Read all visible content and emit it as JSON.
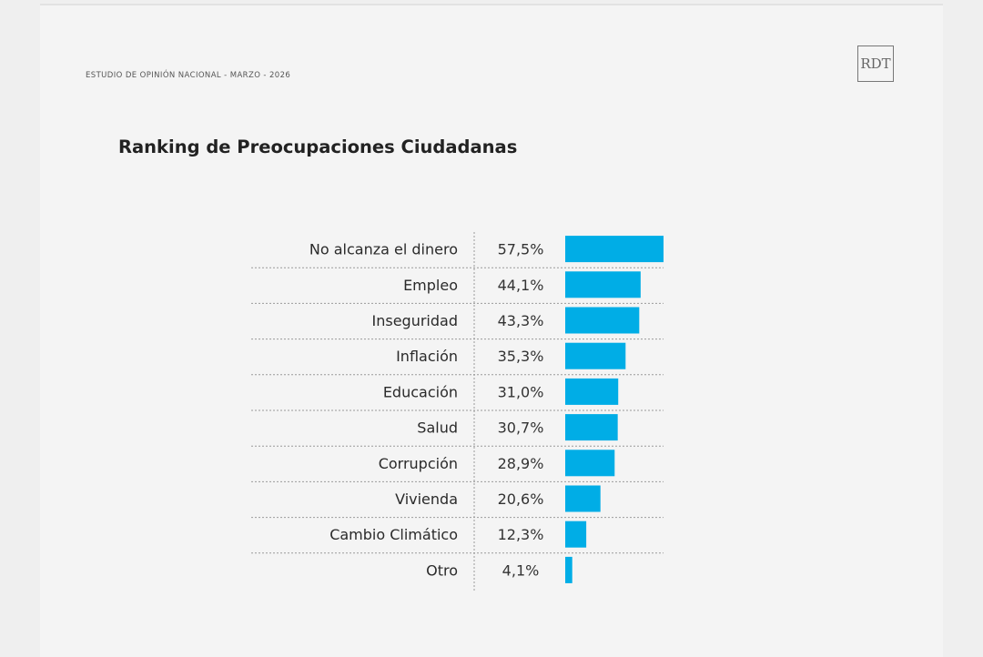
{
  "header": {
    "study_label": "ESTUDIO DE OPINIÓN NACIONAL - MARZO - 2026",
    "logo_text": "RDT"
  },
  "chart_data": {
    "type": "bar",
    "orientation": "horizontal",
    "title": "Ranking de Preocupaciones Ciudadanas",
    "categories": [
      "No alcanza el dinero",
      "Empleo",
      "Inseguridad",
      "Inflación",
      "Educación",
      "Salud",
      "Corrupción",
      "Vivienda",
      "Cambio Climático",
      "Otro"
    ],
    "values": [
      57.5,
      44.1,
      43.3,
      35.3,
      31.0,
      30.7,
      28.9,
      20.6,
      12.3,
      4.1
    ],
    "value_labels": [
      "57,5%",
      "44,1%",
      "43,3%",
      "35,3%",
      "31,0%",
      "30,7%",
      "28,9%",
      "20,6%",
      "12,3%",
      "4,1%"
    ],
    "unit": "%",
    "bar_color": "#00ade6",
    "grid": false
  }
}
